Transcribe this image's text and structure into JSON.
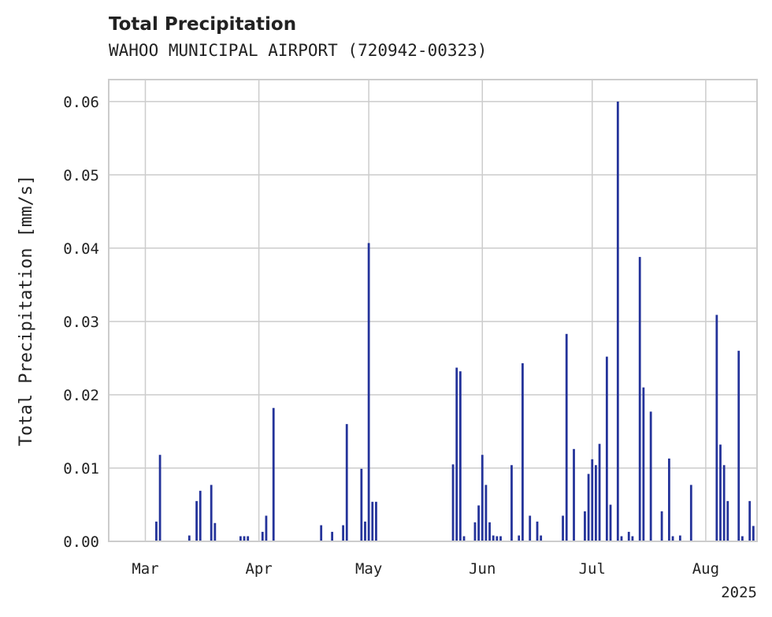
{
  "chart_data": {
    "type": "bar",
    "title": "Total Precipitation",
    "subtitle": "WAHOO MUNICIPAL AIRPORT (720942-00323)",
    "xlabel": "",
    "ylabel": "Total Precipitation [mm/s]",
    "year_label": "2025",
    "x_ticks": [
      {
        "date": "2025-03-01",
        "label": "Mar"
      },
      {
        "date": "2025-04-01",
        "label": "Apr"
      },
      {
        "date": "2025-05-01",
        "label": "May"
      },
      {
        "date": "2025-06-01",
        "label": "Jun"
      },
      {
        "date": "2025-07-01",
        "label": "Jul"
      },
      {
        "date": "2025-08-01",
        "label": "Aug"
      }
    ],
    "y_ticks": [
      0.0,
      0.01,
      0.02,
      0.03,
      0.04,
      0.05,
      0.06
    ],
    "y_tick_labels": [
      "0.00",
      "0.01",
      "0.02",
      "0.03",
      "0.04",
      "0.05",
      "0.06"
    ],
    "xlim": [
      "2025-02-19",
      "2025-08-15"
    ],
    "ylim": [
      0,
      0.063
    ],
    "grid": true,
    "bar_color": "#24339a",
    "series": [
      {
        "x": [
          "2025-03-04",
          "2025-03-05",
          "2025-03-13",
          "2025-03-15",
          "2025-03-16",
          "2025-03-19",
          "2025-03-20",
          "2025-03-27",
          "2025-03-28",
          "2025-03-29",
          "2025-04-02",
          "2025-04-03",
          "2025-04-05",
          "2025-04-18",
          "2025-04-21",
          "2025-04-24",
          "2025-04-25",
          "2025-04-29",
          "2025-04-30",
          "2025-05-01",
          "2025-05-02",
          "2025-05-03",
          "2025-05-24",
          "2025-05-25",
          "2025-05-26",
          "2025-05-27",
          "2025-05-30",
          "2025-05-31",
          "2025-06-01",
          "2025-06-02",
          "2025-06-03",
          "2025-06-04",
          "2025-06-05",
          "2025-06-06",
          "2025-06-09",
          "2025-06-11",
          "2025-06-12",
          "2025-06-14",
          "2025-06-16",
          "2025-06-17",
          "2025-06-23",
          "2025-06-24",
          "2025-06-26",
          "2025-06-29",
          "2025-06-30",
          "2025-07-01",
          "2025-07-02",
          "2025-07-03",
          "2025-07-05",
          "2025-07-06",
          "2025-07-08",
          "2025-07-09",
          "2025-07-11",
          "2025-07-12",
          "2025-07-14",
          "2025-07-15",
          "2025-07-17",
          "2025-07-20",
          "2025-07-22",
          "2025-07-23",
          "2025-07-25",
          "2025-07-28",
          "2025-08-04",
          "2025-08-05",
          "2025-08-06",
          "2025-08-07",
          "2025-08-10",
          "2025-08-11",
          "2025-08-13",
          "2025-08-14"
        ],
        "values": [
          0.0027,
          0.0118,
          0.0008,
          0.0055,
          0.0069,
          0.0077,
          0.0025,
          0.0007,
          0.0007,
          0.0007,
          0.0013,
          0.0035,
          0.0182,
          0.0022,
          0.0013,
          0.0022,
          0.016,
          0.0099,
          0.0027,
          0.0407,
          0.0054,
          0.0054,
          0.0105,
          0.0237,
          0.0232,
          0.0007,
          0.0026,
          0.0049,
          0.0118,
          0.0077,
          0.0026,
          0.0008,
          0.0007,
          0.0007,
          0.0104,
          0.0008,
          0.0243,
          0.0035,
          0.0027,
          0.0008,
          0.0035,
          0.0283,
          0.0126,
          0.0041,
          0.0092,
          0.0112,
          0.0104,
          0.0133,
          0.0252,
          0.005,
          0.06,
          0.0007,
          0.0013,
          0.0007,
          0.0388,
          0.021,
          0.0177,
          0.0041,
          0.0113,
          0.0007,
          0.0008,
          0.0077,
          0.0309,
          0.0132,
          0.0104,
          0.0055,
          0.026,
          0.0007,
          0.0055,
          0.0021
        ]
      }
    ]
  }
}
